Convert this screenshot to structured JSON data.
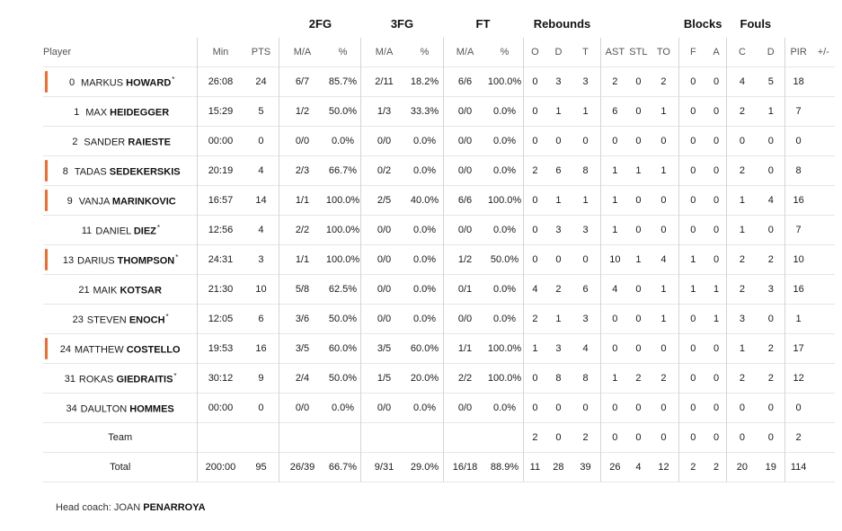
{
  "groups": {
    "fg2": "2FG",
    "fg3": "3FG",
    "ft": "FT",
    "rebounds": "Rebounds",
    "blocks": "Blocks",
    "fouls": "Fouls"
  },
  "columns": {
    "player": "Player",
    "min": "Min",
    "pts": "PTS",
    "fg2_ma": "M/A",
    "fg2_pct": "%",
    "fg3_ma": "M/A",
    "fg3_pct": "%",
    "ft_ma": "M/A",
    "ft_pct": "%",
    "reb_o": "O",
    "reb_d": "D",
    "reb_t": "T",
    "ast": "AST",
    "stl": "STL",
    "to": "TO",
    "blk_f": "F",
    "blk_a": "A",
    "fouls_c": "C",
    "fouls_d": "D",
    "pir": "PIR",
    "pm": "+/-"
  },
  "starter_color": "#f26b2d",
  "players": [
    {
      "num": "0",
      "first": "MARKUS",
      "last": "HOWARD",
      "star": "*",
      "starter": true,
      "min": "26:08",
      "pts": "24",
      "fg2_ma": "6/7",
      "fg2_pct": "85.7%",
      "fg3_ma": "2/11",
      "fg3_pct": "18.2%",
      "ft_ma": "6/6",
      "ft_pct": "100.0%",
      "reb_o": "0",
      "reb_d": "3",
      "reb_t": "3",
      "ast": "2",
      "stl": "0",
      "to": "2",
      "blk_f": "0",
      "blk_a": "0",
      "fouls_c": "4",
      "fouls_d": "5",
      "pir": "18",
      "pm": ""
    },
    {
      "num": "1",
      "first": "MAX",
      "last": "HEIDEGGER",
      "star": "",
      "starter": false,
      "min": "15:29",
      "pts": "5",
      "fg2_ma": "1/2",
      "fg2_pct": "50.0%",
      "fg3_ma": "1/3",
      "fg3_pct": "33.3%",
      "ft_ma": "0/0",
      "ft_pct": "0.0%",
      "reb_o": "0",
      "reb_d": "1",
      "reb_t": "1",
      "ast": "6",
      "stl": "0",
      "to": "1",
      "blk_f": "0",
      "blk_a": "0",
      "fouls_c": "2",
      "fouls_d": "1",
      "pir": "7",
      "pm": ""
    },
    {
      "num": "2",
      "first": "SANDER",
      "last": "RAIESTE",
      "star": "",
      "starter": false,
      "min": "00:00",
      "pts": "0",
      "fg2_ma": "0/0",
      "fg2_pct": "0.0%",
      "fg3_ma": "0/0",
      "fg3_pct": "0.0%",
      "ft_ma": "0/0",
      "ft_pct": "0.0%",
      "reb_o": "0",
      "reb_d": "0",
      "reb_t": "0",
      "ast": "0",
      "stl": "0",
      "to": "0",
      "blk_f": "0",
      "blk_a": "0",
      "fouls_c": "0",
      "fouls_d": "0",
      "pir": "0",
      "pm": ""
    },
    {
      "num": "8",
      "first": "TADAS",
      "last": "SEDEKERSKIS",
      "star": "",
      "starter": true,
      "min": "20:19",
      "pts": "4",
      "fg2_ma": "2/3",
      "fg2_pct": "66.7%",
      "fg3_ma": "0/2",
      "fg3_pct": "0.0%",
      "ft_ma": "0/0",
      "ft_pct": "0.0%",
      "reb_o": "2",
      "reb_d": "6",
      "reb_t": "8",
      "ast": "1",
      "stl": "1",
      "to": "1",
      "blk_f": "0",
      "blk_a": "0",
      "fouls_c": "2",
      "fouls_d": "0",
      "pir": "8",
      "pm": ""
    },
    {
      "num": "9",
      "first": "VANJA",
      "last": "MARINKOVIC",
      "star": "",
      "starter": true,
      "min": "16:57",
      "pts": "14",
      "fg2_ma": "1/1",
      "fg2_pct": "100.0%",
      "fg3_ma": "2/5",
      "fg3_pct": "40.0%",
      "ft_ma": "6/6",
      "ft_pct": "100.0%",
      "reb_o": "0",
      "reb_d": "1",
      "reb_t": "1",
      "ast": "1",
      "stl": "0",
      "to": "0",
      "blk_f": "0",
      "blk_a": "0",
      "fouls_c": "1",
      "fouls_d": "4",
      "pir": "16",
      "pm": ""
    },
    {
      "num": "11",
      "first": "DANIEL",
      "last": "DIEZ",
      "star": "*",
      "starter": false,
      "min": "12:56",
      "pts": "4",
      "fg2_ma": "2/2",
      "fg2_pct": "100.0%",
      "fg3_ma": "0/0",
      "fg3_pct": "0.0%",
      "ft_ma": "0/0",
      "ft_pct": "0.0%",
      "reb_o": "0",
      "reb_d": "3",
      "reb_t": "3",
      "ast": "1",
      "stl": "0",
      "to": "0",
      "blk_f": "0",
      "blk_a": "0",
      "fouls_c": "1",
      "fouls_d": "0",
      "pir": "7",
      "pm": ""
    },
    {
      "num": "13",
      "first": "DARIUS",
      "last": "THOMPSON",
      "star": "*",
      "starter": true,
      "min": "24:31",
      "pts": "3",
      "fg2_ma": "1/1",
      "fg2_pct": "100.0%",
      "fg3_ma": "0/0",
      "fg3_pct": "0.0%",
      "ft_ma": "1/2",
      "ft_pct": "50.0%",
      "reb_o": "0",
      "reb_d": "0",
      "reb_t": "0",
      "ast": "10",
      "stl": "1",
      "to": "4",
      "blk_f": "1",
      "blk_a": "0",
      "fouls_c": "2",
      "fouls_d": "2",
      "pir": "10",
      "pm": ""
    },
    {
      "num": "21",
      "first": "MAIK",
      "last": "KOTSAR",
      "star": "",
      "starter": false,
      "min": "21:30",
      "pts": "10",
      "fg2_ma": "5/8",
      "fg2_pct": "62.5%",
      "fg3_ma": "0/0",
      "fg3_pct": "0.0%",
      "ft_ma": "0/1",
      "ft_pct": "0.0%",
      "reb_o": "4",
      "reb_d": "2",
      "reb_t": "6",
      "ast": "4",
      "stl": "0",
      "to": "1",
      "blk_f": "1",
      "blk_a": "1",
      "fouls_c": "2",
      "fouls_d": "3",
      "pir": "16",
      "pm": ""
    },
    {
      "num": "23",
      "first": "STEVEN",
      "last": "ENOCH",
      "star": "*",
      "starter": false,
      "min": "12:05",
      "pts": "6",
      "fg2_ma": "3/6",
      "fg2_pct": "50.0%",
      "fg3_ma": "0/0",
      "fg3_pct": "0.0%",
      "ft_ma": "0/0",
      "ft_pct": "0.0%",
      "reb_o": "2",
      "reb_d": "1",
      "reb_t": "3",
      "ast": "0",
      "stl": "0",
      "to": "1",
      "blk_f": "0",
      "blk_a": "1",
      "fouls_c": "3",
      "fouls_d": "0",
      "pir": "1",
      "pm": ""
    },
    {
      "num": "24",
      "first": "MATTHEW",
      "last": "COSTELLO",
      "star": "",
      "starter": true,
      "min": "19:53",
      "pts": "16",
      "fg2_ma": "3/5",
      "fg2_pct": "60.0%",
      "fg3_ma": "3/5",
      "fg3_pct": "60.0%",
      "ft_ma": "1/1",
      "ft_pct": "100.0%",
      "reb_o": "1",
      "reb_d": "3",
      "reb_t": "4",
      "ast": "0",
      "stl": "0",
      "to": "0",
      "blk_f": "0",
      "blk_a": "0",
      "fouls_c": "1",
      "fouls_d": "2",
      "pir": "17",
      "pm": ""
    },
    {
      "num": "31",
      "first": "ROKAS",
      "last": "GIEDRAITIS",
      "star": "*",
      "starter": false,
      "min": "30:12",
      "pts": "9",
      "fg2_ma": "2/4",
      "fg2_pct": "50.0%",
      "fg3_ma": "1/5",
      "fg3_pct": "20.0%",
      "ft_ma": "2/2",
      "ft_pct": "100.0%",
      "reb_o": "0",
      "reb_d": "8",
      "reb_t": "8",
      "ast": "1",
      "stl": "2",
      "to": "2",
      "blk_f": "0",
      "blk_a": "0",
      "fouls_c": "2",
      "fouls_d": "2",
      "pir": "12",
      "pm": ""
    },
    {
      "num": "34",
      "first": "DAULTON",
      "last": "HOMMES",
      "star": "",
      "starter": false,
      "min": "00:00",
      "pts": "0",
      "fg2_ma": "0/0",
      "fg2_pct": "0.0%",
      "fg3_ma": "0/0",
      "fg3_pct": "0.0%",
      "ft_ma": "0/0",
      "ft_pct": "0.0%",
      "reb_o": "0",
      "reb_d": "0",
      "reb_t": "0",
      "ast": "0",
      "stl": "0",
      "to": "0",
      "blk_f": "0",
      "blk_a": "0",
      "fouls_c": "0",
      "fouls_d": "0",
      "pir": "0",
      "pm": ""
    }
  ],
  "team": {
    "label": "Team",
    "min": "",
    "pts": "",
    "fg2_ma": "",
    "fg2_pct": "",
    "fg3_ma": "",
    "fg3_pct": "",
    "ft_ma": "",
    "ft_pct": "",
    "reb_o": "2",
    "reb_d": "0",
    "reb_t": "2",
    "ast": "0",
    "stl": "0",
    "to": "0",
    "blk_f": "0",
    "blk_a": "0",
    "fouls_c": "0",
    "fouls_d": "0",
    "pir": "2",
    "pm": ""
  },
  "total": {
    "label": "Total",
    "min": "200:00",
    "pts": "95",
    "fg2_ma": "26/39",
    "fg2_pct": "66.7%",
    "fg3_ma": "9/31",
    "fg3_pct": "29.0%",
    "ft_ma": "16/18",
    "ft_pct": "88.9%",
    "reb_o": "11",
    "reb_d": "28",
    "reb_t": "39",
    "ast": "26",
    "stl": "4",
    "to": "12",
    "blk_f": "2",
    "blk_a": "2",
    "fouls_c": "20",
    "fouls_d": "19",
    "pir": "114",
    "pm": ""
  },
  "coach": {
    "label": "Head coach:",
    "name": "JOAN",
    "surname": "PENARROYA"
  }
}
